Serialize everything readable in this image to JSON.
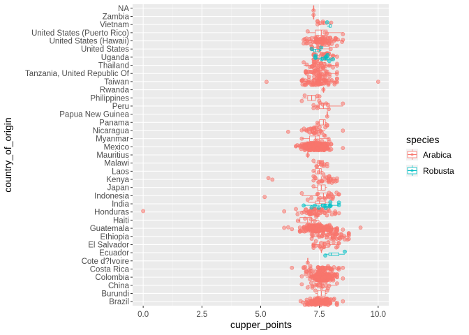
{
  "chart_data": {
    "type": "boxplot",
    "overlay": "jittered points",
    "orientation": "horizontal",
    "xlabel": "cupper_points",
    "ylabel": "country_of_origin",
    "xlim": [
      0,
      10
    ],
    "xticks": [
      "0.0",
      "2.5",
      "5.0",
      "7.5",
      "10.0"
    ],
    "grid": true,
    "legend": {
      "title": "species",
      "position": "right",
      "entries": [
        {
          "name": "Arabica",
          "color": "#F8766D"
        },
        {
          "name": "Robusta",
          "color": "#00BFC4"
        }
      ]
    },
    "categories": [
      "Brazil",
      "Burundi",
      "China",
      "Colombia",
      "Costa Rica",
      "Cote d?Ivoire",
      "Ecuador",
      "El Salvador",
      "Ethiopia",
      "Guatemala",
      "Haiti",
      "Honduras",
      "India",
      "Indonesia",
      "Japan",
      "Kenya",
      "Laos",
      "Malawi",
      "Mauritius",
      "Mexico",
      "Myanmar",
      "Nicaragua",
      "Panama",
      "Papua New Guinea",
      "Peru",
      "Philippines",
      "Rwanda",
      "Taiwan",
      "Tanzania, United Republic Of",
      "Thailand",
      "Uganda",
      "United States",
      "United States (Hawaii)",
      "United States (Puerto Rico)",
      "Vietnam",
      "Zambia",
      "NA"
    ],
    "boxes": [
      {
        "country": "Brazil",
        "species": "Arabica",
        "min": 6.8,
        "q1": 7.33,
        "median": 7.5,
        "q3": 7.75,
        "max": 8.25,
        "n": 130,
        "outliers": [
          6.7,
          8.5
        ]
      },
      {
        "country": "Burundi",
        "species": "Arabica",
        "min": 7.33,
        "q1": 7.42,
        "median": 7.58,
        "q3": 7.75,
        "max": 7.83,
        "n": 2,
        "outliers": []
      },
      {
        "country": "China",
        "species": "Arabica",
        "min": 7.0,
        "q1": 7.42,
        "median": 7.58,
        "q3": 7.83,
        "max": 8.25,
        "n": 16,
        "outliers": [
          6.75
        ]
      },
      {
        "country": "Colombia",
        "species": "Arabica",
        "min": 6.92,
        "q1": 7.5,
        "median": 7.67,
        "q3": 7.83,
        "max": 8.25,
        "n": 183,
        "outliers": [
          6.75,
          8.5
        ]
      },
      {
        "country": "Costa Rica",
        "species": "Arabica",
        "min": 6.83,
        "q1": 7.42,
        "median": 7.58,
        "q3": 7.83,
        "max": 8.33,
        "n": 51,
        "outliers": [
          6.33,
          8.5
        ]
      },
      {
        "country": "Cote d?Ivoire",
        "species": "Arabica",
        "min": 7.0,
        "q1": 7.0,
        "median": 7.0,
        "q3": 7.0,
        "max": 7.0,
        "n": 1,
        "outliers": []
      },
      {
        "country": "Ecuador",
        "species": "Arabica",
        "min": 7.58,
        "q1": 7.58,
        "median": 7.58,
        "q3": 7.58,
        "max": 7.58,
        "n": 1,
        "outliers": []
      },
      {
        "country": "Ecuador",
        "species": "Robusta",
        "min": 7.75,
        "q1": 7.9,
        "median": 8.0,
        "q3": 8.33,
        "max": 8.58,
        "n": 2,
        "outliers": []
      },
      {
        "country": "El Salvador",
        "species": "Arabica",
        "min": 7.25,
        "q1": 7.5,
        "median": 7.67,
        "q3": 7.92,
        "max": 8.33,
        "n": 21,
        "outliers": []
      },
      {
        "country": "Ethiopia",
        "species": "Arabica",
        "min": 7.17,
        "q1": 7.75,
        "median": 8.0,
        "q3": 8.33,
        "max": 8.75,
        "n": 44,
        "outliers": []
      },
      {
        "country": "Guatemala",
        "species": "Arabica",
        "min": 6.67,
        "q1": 7.17,
        "median": 7.42,
        "q3": 7.67,
        "max": 8.25,
        "n": 181,
        "outliers": [
          6.0,
          6.17,
          6.33,
          8.5,
          9.25
        ]
      },
      {
        "country": "Haiti",
        "species": "Arabica",
        "min": 6.58,
        "q1": 6.67,
        "median": 7.0,
        "q3": 7.17,
        "max": 7.5,
        "n": 6,
        "outliers": []
      },
      {
        "country": "Honduras",
        "species": "Arabica",
        "min": 6.5,
        "q1": 7.08,
        "median": 7.33,
        "q3": 7.58,
        "max": 8.17,
        "n": 53,
        "outliers": [
          0.0,
          6.0,
          8.33
        ]
      },
      {
        "country": "India",
        "species": "Arabica",
        "min": 7.0,
        "q1": 7.33,
        "median": 7.5,
        "q3": 7.75,
        "max": 8.0,
        "n": 1,
        "outliers": []
      },
      {
        "country": "India",
        "species": "Robusta",
        "min": 6.83,
        "q1": 7.58,
        "median": 7.75,
        "q3": 7.92,
        "max": 8.33,
        "n": 13,
        "outliers": []
      },
      {
        "country": "Indonesia",
        "species": "Arabica",
        "min": 6.75,
        "q1": 7.42,
        "median": 7.67,
        "q3": 7.83,
        "max": 8.33,
        "n": 20,
        "outliers": [
          5.17
        ]
      },
      {
        "country": "Japan",
        "species": "Arabica",
        "min": 7.25,
        "q1": 7.42,
        "median": 7.58,
        "q3": 7.75,
        "max": 7.83,
        "n": 1,
        "outliers": []
      },
      {
        "country": "Kenya",
        "species": "Arabica",
        "min": 7.25,
        "q1": 7.58,
        "median": 7.83,
        "q3": 8.0,
        "max": 8.25,
        "n": 25,
        "outliers": [
          5.33,
          5.5
        ]
      },
      {
        "country": "Laos",
        "species": "Arabica",
        "min": 7.25,
        "q1": 7.33,
        "median": 7.5,
        "q3": 7.58,
        "max": 7.67,
        "n": 3,
        "outliers": []
      },
      {
        "country": "Malawi",
        "species": "Arabica",
        "min": 7.25,
        "q1": 7.42,
        "median": 7.5,
        "q3": 7.67,
        "max": 7.83,
        "n": 11,
        "outliers": []
      },
      {
        "country": "Mauritius",
        "species": "Arabica",
        "min": 7.0,
        "q1": 7.0,
        "median": 7.0,
        "q3": 7.0,
        "max": 7.0,
        "n": 1,
        "outliers": []
      },
      {
        "country": "Mexico",
        "species": "Arabica",
        "min": 6.5,
        "q1": 7.08,
        "median": 7.33,
        "q3": 7.5,
        "max": 8.0,
        "n": 236,
        "outliers": [
          8.5
        ]
      },
      {
        "country": "Myanmar",
        "species": "Arabica",
        "min": 6.75,
        "q1": 7.08,
        "median": 7.33,
        "q3": 7.5,
        "max": 7.92,
        "n": 8,
        "outliers": []
      },
      {
        "country": "Nicaragua",
        "species": "Arabica",
        "min": 6.75,
        "q1": 7.0,
        "median": 7.17,
        "q3": 7.33,
        "max": 7.75,
        "n": 26,
        "outliers": [
          6.17,
          8.5
        ]
      },
      {
        "country": "Panama",
        "species": "Arabica",
        "min": 7.42,
        "q1": 7.5,
        "median": 7.67,
        "q3": 7.75,
        "max": 7.83,
        "n": 4,
        "outliers": []
      },
      {
        "country": "Papua New Guinea",
        "species": "Arabica",
        "min": 7.83,
        "q1": 7.83,
        "median": 7.83,
        "q3": 7.83,
        "max": 7.83,
        "n": 1,
        "outliers": []
      },
      {
        "country": "Peru",
        "species": "Arabica",
        "min": 7.25,
        "q1": 7.5,
        "median": 7.67,
        "q3": 7.92,
        "max": 8.5,
        "n": 10,
        "outliers": []
      },
      {
        "country": "Philippines",
        "species": "Arabica",
        "min": 6.75,
        "q1": 7.0,
        "median": 7.17,
        "q3": 7.33,
        "max": 7.5,
        "n": 5,
        "outliers": []
      },
      {
        "country": "Rwanda",
        "species": "Arabica",
        "min": 7.67,
        "q1": 7.67,
        "median": 7.67,
        "q3": 7.67,
        "max": 7.67,
        "n": 1,
        "outliers": []
      },
      {
        "country": "Taiwan",
        "species": "Arabica",
        "min": 6.75,
        "q1": 7.25,
        "median": 7.5,
        "q3": 7.75,
        "max": 8.25,
        "n": 75,
        "outliers": [
          5.25,
          10.0
        ]
      },
      {
        "country": "Tanzania, United Republic Of",
        "species": "Arabica",
        "min": 6.92,
        "q1": 7.33,
        "median": 7.5,
        "q3": 7.75,
        "max": 8.25,
        "n": 40,
        "outliers": []
      },
      {
        "country": "Thailand",
        "species": "Arabica",
        "min": 6.83,
        "q1": 7.25,
        "median": 7.5,
        "q3": 7.75,
        "max": 8.25,
        "n": 32,
        "outliers": []
      },
      {
        "country": "Uganda",
        "species": "Arabica",
        "min": 7.25,
        "q1": 7.5,
        "median": 7.67,
        "q3": 7.92,
        "max": 8.25,
        "n": 26,
        "outliers": []
      },
      {
        "country": "Uganda",
        "species": "Robusta",
        "min": 7.33,
        "q1": 7.58,
        "median": 7.75,
        "q3": 7.92,
        "max": 8.08,
        "n": 10,
        "outliers": []
      },
      {
        "country": "United States",
        "species": "Arabica",
        "min": 7.17,
        "q1": 7.42,
        "median": 7.58,
        "q3": 7.92,
        "max": 8.25,
        "n": 8,
        "outliers": []
      },
      {
        "country": "United States",
        "species": "Robusta",
        "min": 7.17,
        "q1": 7.25,
        "median": 7.33,
        "q3": 7.5,
        "max": 7.58,
        "n": 2,
        "outliers": []
      },
      {
        "country": "United States (Hawaii)",
        "species": "Arabica",
        "min": 6.83,
        "q1": 7.33,
        "median": 7.58,
        "q3": 7.83,
        "max": 8.5,
        "n": 73,
        "outliers": []
      },
      {
        "country": "United States (Puerto Rico)",
        "species": "Arabica",
        "min": 7.0,
        "q1": 7.33,
        "median": 7.58,
        "q3": 7.83,
        "max": 8.5,
        "n": 4,
        "outliers": []
      },
      {
        "country": "Vietnam",
        "species": "Arabica",
        "min": 7.42,
        "q1": 7.5,
        "median": 7.67,
        "q3": 7.83,
        "max": 8.0,
        "n": 7,
        "outliers": []
      },
      {
        "country": "Vietnam",
        "species": "Robusta",
        "min": 7.83,
        "q1": 7.92,
        "median": 7.92,
        "q3": 8.0,
        "max": 8.0,
        "n": 1,
        "outliers": []
      },
      {
        "country": "Zambia",
        "species": "Arabica",
        "min": 7.25,
        "q1": 7.25,
        "median": 7.25,
        "q3": 7.25,
        "max": 7.25,
        "n": 1,
        "outliers": []
      },
      {
        "country": "NA",
        "species": "Arabica",
        "min": 7.25,
        "q1": 7.25,
        "median": 7.25,
        "q3": 7.25,
        "max": 7.25,
        "n": 1,
        "outliers": []
      }
    ]
  }
}
